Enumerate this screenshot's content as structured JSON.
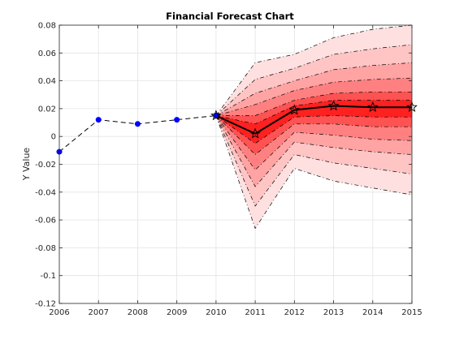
{
  "chart_data": {
    "type": "line",
    "title": "Financial Forecast Chart",
    "xlabel": "",
    "ylabel": "Y Value",
    "xlim": [
      2006,
      2015
    ],
    "ylim": [
      -0.12,
      0.08
    ],
    "grid": true,
    "x_ticks": [
      "2006",
      "2007",
      "2008",
      "2009",
      "2010",
      "2011",
      "2012",
      "2013",
      "2014",
      "2015"
    ],
    "y_ticks": [
      "-0.12",
      "-0.1",
      "-0.08",
      "-0.06",
      "-0.04",
      "-0.02",
      "0",
      "0.02",
      "0.04",
      "0.06",
      "0.08"
    ],
    "history": {
      "x": [
        2006,
        2007,
        2008,
        2009,
        2010
      ],
      "y": [
        -0.011,
        0.012,
        0.009,
        0.012,
        0.015
      ],
      "color": "#0000ff"
    },
    "forecast": {
      "x": [
        2010,
        2011,
        2012,
        2013,
        2014,
        2015
      ],
      "median": [
        0.015,
        0.002,
        0.019,
        0.022,
        0.021,
        0.021
      ]
    },
    "fan_bands": [
      {
        "lower": [
          0.015,
          -0.066,
          -0.023,
          -0.032,
          -0.037,
          -0.042
        ],
        "upper": [
          0.015,
          0.053,
          0.059,
          0.071,
          0.077,
          0.08
        ],
        "color": "#ffe0e0"
      },
      {
        "lower": [
          0.015,
          -0.05,
          -0.013,
          -0.019,
          -0.023,
          -0.027
        ],
        "upper": [
          0.015,
          0.041,
          0.049,
          0.059,
          0.063,
          0.066
        ],
        "color": "#ffc4c4"
      },
      {
        "lower": [
          0.015,
          -0.036,
          -0.004,
          -0.008,
          -0.011,
          -0.013
        ],
        "upper": [
          0.015,
          0.031,
          0.04,
          0.048,
          0.051,
          0.053
        ],
        "color": "#ffa3a3"
      },
      {
        "lower": [
          0.015,
          -0.024,
          0.003,
          0.001,
          -0.002,
          -0.003
        ],
        "upper": [
          0.015,
          0.023,
          0.033,
          0.039,
          0.041,
          0.042
        ],
        "color": "#ff8080"
      },
      {
        "lower": [
          0.015,
          -0.013,
          0.009,
          0.009,
          0.007,
          0.007
        ],
        "upper": [
          0.015,
          0.015,
          0.026,
          0.031,
          0.032,
          0.032
        ],
        "color": "#ff5252"
      },
      {
        "lower": [
          0.015,
          -0.005,
          0.014,
          0.015,
          0.014,
          0.014
        ],
        "upper": [
          0.015,
          0.009,
          0.022,
          0.026,
          0.026,
          0.026
        ],
        "color": "#ff2020"
      }
    ],
    "forecast_line_color": "#000000"
  }
}
